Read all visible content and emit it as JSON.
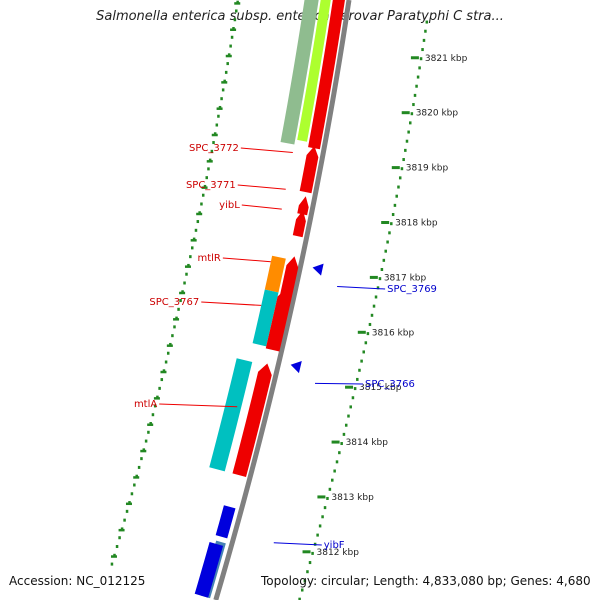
{
  "title": "Salmonella enterica subsp. enterica serovar Paratyphi C stra...",
  "footer": {
    "accession": "Accession: NC_012125",
    "summary": "Topology: circular; Length: 4,833,080 bp; Genes: 4,680"
  },
  "colors": {
    "forward_strand": "#ee0000",
    "reverse_strand": "#0000dd",
    "backbone": "#808080",
    "ticks": "#228822",
    "cyan_feature": "#00c0c0",
    "orange_feature": "#ff8c00",
    "lime_feature": "#adff2f",
    "olive_feature": "#8fbc8f",
    "steel_feature": "#4682b4"
  },
  "ticks": [
    {
      "label": "3821 kbp",
      "pos": 3821
    },
    {
      "label": "3820 kbp",
      "pos": 3820
    },
    {
      "label": "3819 kbp",
      "pos": 3819
    },
    {
      "label": "3818 kbp",
      "pos": 3818
    },
    {
      "label": "3817 kbp",
      "pos": 3817
    },
    {
      "label": "3816 kbp",
      "pos": 3816
    },
    {
      "label": "3815 kbp",
      "pos": 3815
    },
    {
      "label": "3814 kbp",
      "pos": 3814
    },
    {
      "label": "3813 kbp",
      "pos": 3813
    },
    {
      "label": "3812 kbp",
      "pos": 3812
    }
  ],
  "forward_genes": [
    {
      "name": "SPC_3772"
    },
    {
      "name": "SPC_3771"
    },
    {
      "name": "yibL"
    },
    {
      "name": "mtlR"
    },
    {
      "name": "SPC_3767"
    },
    {
      "name": "mtlA"
    }
  ],
  "reverse_genes": [
    {
      "name": "SPC_3769"
    },
    {
      "name": "SPC_3766"
    },
    {
      "name": "yibF"
    }
  ]
}
